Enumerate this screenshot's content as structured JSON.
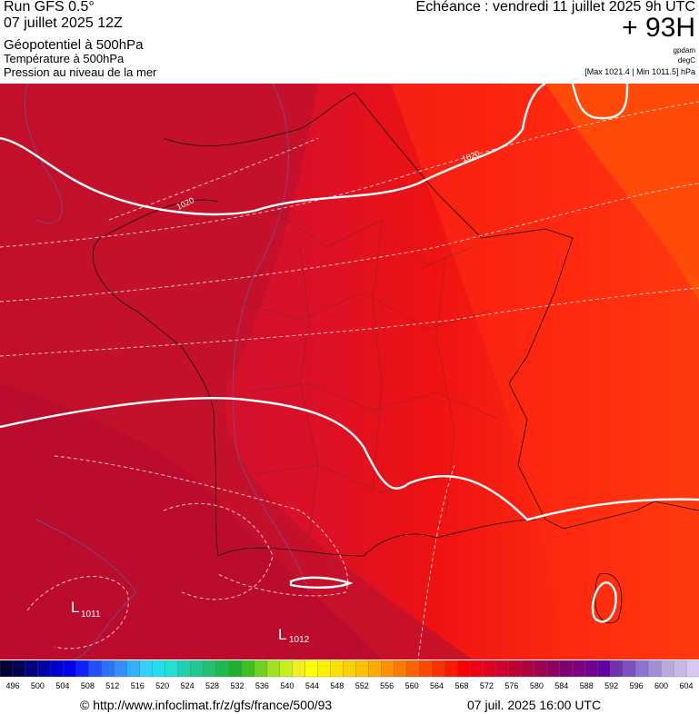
{
  "header": {
    "run": "Run GFS 0.5°",
    "date": "07 juillet 2025 12Z",
    "field1": "Géopotentiel à 500hPa",
    "field2": "Température à 500hPa",
    "field3": "Pression au niveau de la mer",
    "echeance": "Echéance : vendredi 11 juillet 2025 9h UTC",
    "lead": "+ 93H",
    "unit1": "gpdam",
    "unit2": "degC",
    "range": "[Max 1021.4 | Min 1011.5] hPa"
  },
  "map_labels": {
    "isobar_west": "1020",
    "isobar_east": "1020",
    "low1_letter": "L",
    "low1_value": "1011",
    "low2_letter": "L",
    "low2_value": "1012"
  },
  "colorbar": {
    "labels": [
      496,
      500,
      504,
      508,
      512,
      516,
      520,
      524,
      528,
      532,
      536,
      540,
      544,
      548,
      552,
      556,
      560,
      564,
      568,
      572,
      576,
      580,
      584,
      588,
      592,
      596,
      600,
      604
    ],
    "colors": [
      "#000033",
      "#000055",
      "#000080",
      "#0000a8",
      "#0000d0",
      "#0000f0",
      "#1020ff",
      "#2050ff",
      "#3070ff",
      "#3090ff",
      "#30b0ff",
      "#30d0ff",
      "#20e0f0",
      "#20e0d0",
      "#20d0b0",
      "#20c890",
      "#20c070",
      "#20b850",
      "#20b030",
      "#40c020",
      "#70d020",
      "#a0e020",
      "#c8f020",
      "#f0f020",
      "#ffff00",
      "#fff000",
      "#ffe000",
      "#ffd000",
      "#ffc000",
      "#ffa800",
      "#ff9000",
      "#ff7800",
      "#ff6000",
      "#ff4800",
      "#ff3000",
      "#ff1800",
      "#ff0000",
      "#f00010",
      "#e00020",
      "#d00030",
      "#c00030",
      "#b00040",
      "#a00050",
      "#900060",
      "#800070",
      "#800080",
      "#700090",
      "#6000a0",
      "#7030b0",
      "#8050c0",
      "#9070d0",
      "#a090d8",
      "#b8a8e0",
      "#c8b8e8",
      "#d8c8f0"
    ]
  },
  "footer": {
    "url": "© http://www.infoclimat.fr/z/gfs/france/500/93",
    "timestamp": "07 juil. 2025 16:00 UTC"
  }
}
